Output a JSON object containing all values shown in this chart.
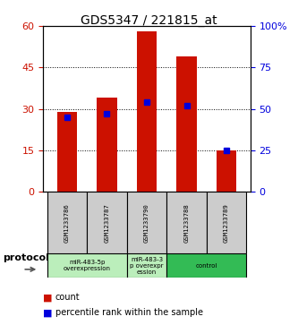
{
  "title": "GDS5347 / 221815_at",
  "samples": [
    "GSM1233786",
    "GSM1233787",
    "GSM1233790",
    "GSM1233788",
    "GSM1233789"
  ],
  "counts": [
    29,
    34,
    58,
    49,
    15
  ],
  "percentiles": [
    45,
    47,
    54,
    52,
    25
  ],
  "ylim_left": [
    0,
    60
  ],
  "ylim_right": [
    0,
    100
  ],
  "yticks_left": [
    0,
    15,
    30,
    45,
    60
  ],
  "yticks_right": [
    0,
    25,
    50,
    75,
    100
  ],
  "bar_color": "#cc1100",
  "marker_color": "#0000dd",
  "title_fontsize": 10,
  "axis_label_color_left": "#cc1100",
  "axis_label_color_right": "#0000dd",
  "plot_bg_color": "#ffffff",
  "bar_width": 0.5,
  "group_defs": [
    {
      "indices": [
        0,
        1
      ],
      "label": "miR-483-5p\noverexpression",
      "color": "#bbeebb"
    },
    {
      "indices": [
        2
      ],
      "label": "miR-483-3\np overexpr\nession",
      "color": "#bbeebb"
    },
    {
      "indices": [
        3,
        4
      ],
      "label": "control",
      "color": "#33bb55"
    }
  ],
  "protocol_label": "protocol",
  "legend_count_label": "count",
  "legend_percentile_label": "percentile rank within the sample",
  "sample_box_color": "#cccccc"
}
